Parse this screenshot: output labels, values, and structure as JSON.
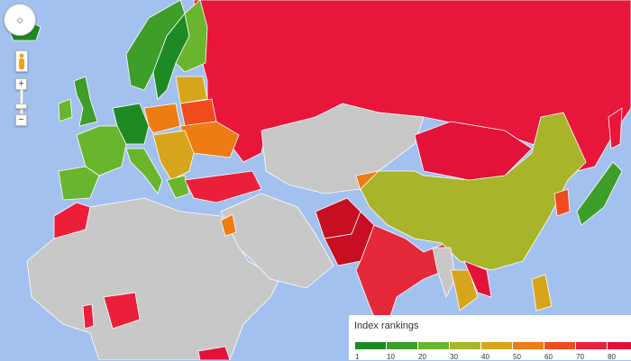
{
  "map": {
    "colors": {
      "water": "#a3c1ef",
      "no_data": "#c8c8c8",
      "russia": "#e8163a",
      "china": "#a8b429",
      "india": "#e5293a",
      "pakistan": "#c80f22"
    }
  },
  "controls": {
    "pan_icon": "pan-arrows-icon",
    "pegman_icon": "pegman-icon",
    "zoom_in_label": "+",
    "zoom_out_label": "−"
  },
  "legend": {
    "title": "Index rankings",
    "colors": [
      "#1e8a23",
      "#3d9e29",
      "#6ab52e",
      "#a6b82a",
      "#d7a51c",
      "#ef7b13",
      "#f14b1d",
      "#ec1f3b",
      "#e3123a"
    ],
    "ticks": [
      "1",
      "10",
      "20",
      "30",
      "40",
      "50",
      "60",
      "70",
      "80",
      "91"
    ]
  }
}
